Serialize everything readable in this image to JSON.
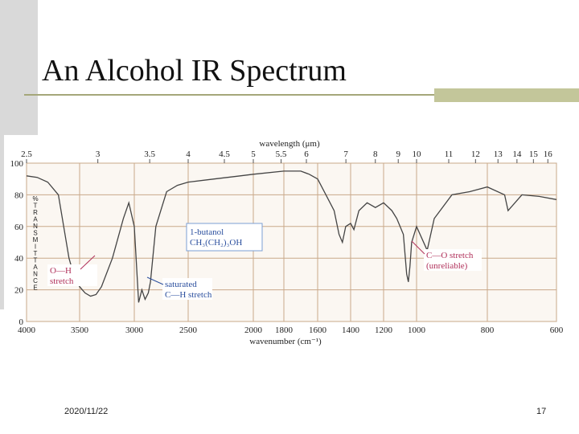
{
  "slide": {
    "title": "An Alcohol IR Spectrum",
    "date": "2020/11/22",
    "page": "17"
  },
  "chart_data": {
    "type": "line",
    "x_label": "wavenumber (cm⁻¹)",
    "y_label": "%TRANSMITTANCE",
    "top_axis": {
      "label": "wavelength (μm)",
      "ticks": [
        2.5,
        3,
        3.5,
        4,
        4.5,
        5,
        5.5,
        6,
        7,
        8,
        9,
        10,
        11,
        12,
        13,
        14,
        15,
        16
      ]
    },
    "x": [
      4000,
      3900,
      3800,
      3700,
      3650,
      3600,
      3550,
      3500,
      3450,
      3400,
      3350,
      3300,
      3200,
      3100,
      3050,
      3000,
      2960,
      2930,
      2900,
      2870,
      2850,
      2800,
      2700,
      2600,
      2500,
      2300,
      2100,
      2000,
      1800,
      1700,
      1650,
      1600,
      1550,
      1500,
      1470,
      1450,
      1430,
      1400,
      1380,
      1350,
      1300,
      1250,
      1200,
      1150,
      1120,
      1100,
      1080,
      1060,
      1050,
      1040,
      1030,
      1000,
      970,
      950,
      900,
      850,
      800,
      750,
      740,
      700,
      650,
      600
    ],
    "series": [
      {
        "name": "1-butanol",
        "color": "#444444",
        "values": [
          92,
          91,
          88,
          80,
          60,
          40,
          28,
          22,
          18,
          16,
          17,
          22,
          40,
          65,
          75,
          60,
          12,
          20,
          14,
          18,
          25,
          60,
          82,
          86,
          88,
          90,
          92,
          93,
          95,
          95,
          93,
          90,
          80,
          70,
          55,
          50,
          60,
          62,
          58,
          70,
          75,
          72,
          75,
          70,
          65,
          60,
          55,
          30,
          25,
          35,
          50,
          60,
          45,
          65,
          80,
          82,
          85,
          80,
          70,
          80,
          79,
          77
        ]
      }
    ],
    "xlim": [
      4000,
      600
    ],
    "ylim": [
      0,
      100
    ],
    "xticks": [
      4000,
      3500,
      3000,
      2500,
      2000,
      1800,
      1600,
      1400,
      1200,
      1000,
      800,
      600
    ],
    "yticks": [
      0,
      20,
      40,
      60,
      80,
      100
    ],
    "grid": true,
    "annotations": [
      {
        "lines": [
          "1-butanol",
          "CH₃(CH₂)₃OH"
        ]
      },
      {
        "lines": [
          "O—H",
          "stretch"
        ]
      },
      {
        "lines": [
          "saturated",
          "C—H stretch"
        ]
      },
      {
        "lines": [
          "C—O stretch",
          "(unreliable)"
        ]
      }
    ]
  }
}
